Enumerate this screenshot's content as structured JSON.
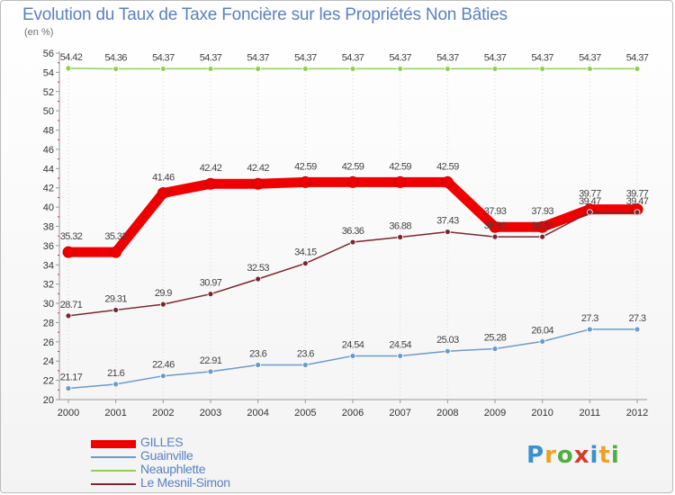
{
  "title": "Evolution du Taux de Taxe Foncière sur les Propriétés Non Bâties",
  "unit_label": "(en %)",
  "logo": {
    "text": "Proxiti",
    "letters": [
      "P",
      "r",
      "o",
      "x",
      "i",
      "t",
      "i"
    ],
    "colors": [
      "#3a8fd6",
      "#f0a020",
      "#4fb040",
      "#d83a2a",
      "#3a8fd6",
      "#f0a020",
      "#4fb040"
    ]
  },
  "chart_data": {
    "type": "line",
    "title": "Evolution du Taux de Taxe Foncière sur les Propriétés Non Bâties",
    "ylabel": "(en %)",
    "x": [
      2000,
      2001,
      2002,
      2003,
      2004,
      2005,
      2006,
      2007,
      2008,
      2009,
      2010,
      2011,
      2012
    ],
    "x_labels": [
      "2000",
      "2001",
      "2002",
      "2003",
      "2004",
      "2005",
      "2006",
      "2007",
      "2008",
      "2009",
      "2010",
      "2011",
      "2012"
    ],
    "ylim": [
      20,
      56
    ],
    "y_ticks": [
      20,
      22,
      24,
      26,
      28,
      30,
      32,
      34,
      36,
      38,
      40,
      42,
      44,
      46,
      48,
      50,
      52,
      54,
      56
    ],
    "y_tick_labels": [
      "20",
      "22",
      "24",
      "26",
      "28",
      "30",
      "32",
      "34",
      "36",
      "38",
      "40",
      "42",
      "44",
      "46",
      "48",
      "50",
      "52",
      "54",
      "56"
    ],
    "grid": "vertical dotted",
    "legend_position": "bottom-left",
    "series": [
      {
        "name": "GILLES",
        "color": "#ee0000",
        "width": 11,
        "marker": 6,
        "values": [
          35.32,
          35.32,
          41.46,
          42.42,
          42.42,
          42.59,
          42.59,
          42.59,
          42.59,
          37.93,
          37.93,
          39.77,
          39.77
        ],
        "labels": [
          "35.32",
          "35.32",
          "41.46",
          "42.42",
          "42.42",
          "42.59",
          "42.59",
          "42.59",
          "42.59",
          "37.93",
          "37.93",
          "39.77",
          "39.77"
        ]
      },
      {
        "name": "Guainville",
        "color": "#6b9bc9",
        "width": 1.5,
        "marker": 3,
        "values": [
          21.17,
          21.6,
          22.46,
          22.91,
          23.6,
          23.6,
          24.54,
          24.54,
          25.03,
          25.28,
          26.04,
          27.3,
          27.3
        ],
        "labels": [
          "21.17",
          "21.6",
          "22.46",
          "22.91",
          "23.6",
          "23.6",
          "24.54",
          "24.54",
          "25.03",
          "25.28",
          "26.04",
          "27.3",
          "27.3"
        ]
      },
      {
        "name": "Neauphlette",
        "color": "#8fd14f",
        "width": 1.5,
        "marker": 3,
        "values": [
          54.42,
          54.36,
          54.37,
          54.37,
          54.37,
          54.37,
          54.37,
          54.37,
          54.37,
          54.37,
          54.37,
          54.37,
          54.37
        ],
        "labels": [
          "54.42",
          "54.36",
          "54.37",
          "54.37",
          "54.37",
          "54.37",
          "54.37",
          "54.37",
          "54.37",
          "54.37",
          "54.37",
          "54.37",
          "54.37"
        ]
      },
      {
        "name": "Le Mesnil-Simon",
        "color": "#7a2630",
        "width": 1.5,
        "marker": 3,
        "values": [
          28.71,
          29.31,
          29.9,
          30.97,
          32.53,
          34.15,
          36.36,
          36.88,
          37.43,
          36.91,
          36.91,
          39.47,
          39.47
        ],
        "labels": [
          "28.71",
          "29.31",
          "29.9",
          "30.97",
          "32.53",
          "34.15",
          "36.36",
          "36.88",
          "37.43",
          "36.91",
          "36.91",
          "39.47",
          "39.47"
        ]
      }
    ]
  }
}
